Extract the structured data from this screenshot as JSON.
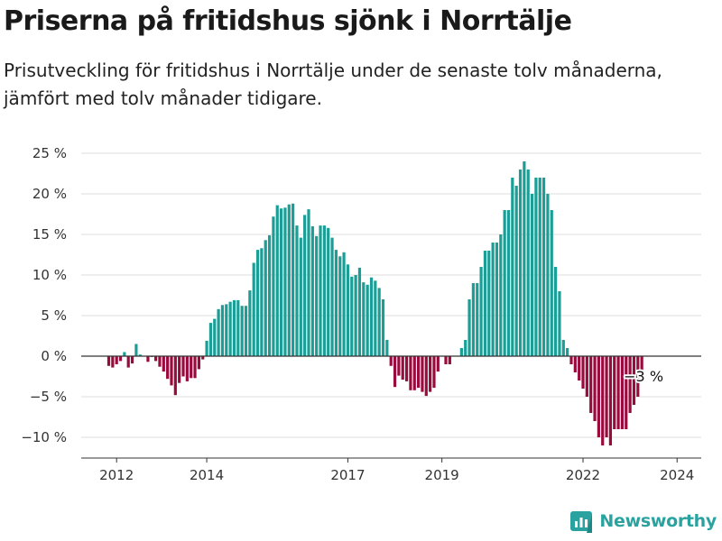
{
  "title": "Priserna på fritidshus sjönk i Norrtälje",
  "subtitle": "Prisutveckling för fritidshus i Norrtälje under de senaste tolv månaderna, jämfört med tolv månader tidigare.",
  "brand": "Newsworthy",
  "colors": {
    "positive": "#1a9e96",
    "negative": "#9a0b3d",
    "grid": "#dddddd",
    "baseline": "#333333"
  },
  "chart_data": {
    "type": "bar",
    "ylim": [
      -12,
      27
    ],
    "yticks": [
      25,
      20,
      15,
      10,
      5,
      0,
      -5,
      -10
    ],
    "ytick_labels": [
      "25 %",
      "20 %",
      "15 %",
      "10 %",
      "5 %",
      "0 %",
      "−5 %",
      "−10 %"
    ],
    "xticks": [
      "2012",
      "2014",
      "2017",
      "2019",
      "2022",
      "2024"
    ],
    "annotation": "−3 %",
    "grid": true,
    "values": [
      -1.2,
      -1.4,
      -1,
      -0.6,
      0.5,
      -1.4,
      -0.9,
      1.5,
      0.2,
      0,
      -0.7,
      -0.1,
      -0.6,
      -1.3,
      -1.9,
      -2.8,
      -3.6,
      -4.8,
      -3.3,
      -2.5,
      -3.1,
      -2.7,
      -2.7,
      -1.6,
      -0.4,
      1.9,
      4.1,
      4.6,
      5.8,
      6.3,
      6.4,
      6.7,
      6.9,
      6.9,
      6.2,
      6.2,
      8.1,
      11.5,
      13.1,
      13.3,
      14.3,
      14.9,
      17.2,
      18.6,
      18.2,
      18.3,
      18.7,
      18.8,
      16.1,
      14.6,
      17.4,
      18.1,
      16,
      14.8,
      16.1,
      16.1,
      15.8,
      14.6,
      13.1,
      12.3,
      12.8,
      11.3,
      9.8,
      10,
      10.9,
      9.1,
      8.8,
      9.7,
      9.3,
      8.4,
      7,
      2,
      -1.2,
      -3.8,
      -2.4,
      -2.9,
      -3.1,
      -4.2,
      -4.2,
      -3.9,
      -4.4,
      -4.9,
      -4.4,
      -3.9,
      -1.9,
      0,
      -1,
      -1,
      0,
      0,
      1,
      2,
      7,
      9,
      9,
      11,
      13,
      13,
      14,
      14,
      15,
      18,
      18,
      22,
      21,
      23,
      24,
      23,
      20,
      22,
      22,
      22,
      20,
      18,
      11,
      8,
      2,
      1,
      -1,
      -2,
      -3,
      -4,
      -5,
      -7,
      -8,
      -10,
      -11,
      -10,
      -11,
      -9,
      -9,
      -9,
      -9,
      -7,
      -6,
      -5,
      -3
    ],
    "xtick_indices": [
      2,
      25,
      61,
      85,
      121,
      145
    ]
  }
}
